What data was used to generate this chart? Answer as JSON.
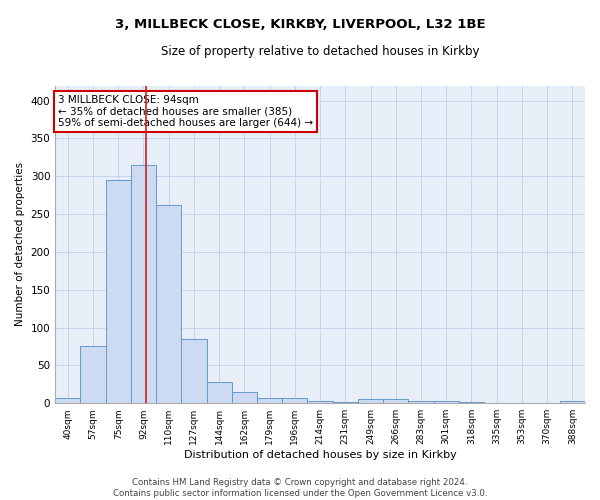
{
  "title1": "3, MILLBECK CLOSE, KIRKBY, LIVERPOOL, L32 1BE",
  "title2": "Size of property relative to detached houses in Kirkby",
  "xlabel": "Distribution of detached houses by size in Kirkby",
  "ylabel": "Number of detached properties",
  "bin_labels": [
    "40sqm",
    "57sqm",
    "75sqm",
    "92sqm",
    "110sqm",
    "127sqm",
    "144sqm",
    "162sqm",
    "179sqm",
    "196sqm",
    "214sqm",
    "231sqm",
    "249sqm",
    "266sqm",
    "283sqm",
    "301sqm",
    "318sqm",
    "335sqm",
    "353sqm",
    "370sqm",
    "388sqm"
  ],
  "bar_heights": [
    7,
    75,
    295,
    315,
    262,
    85,
    28,
    15,
    7,
    7,
    3,
    1,
    5,
    5,
    3,
    3,
    1,
    0,
    0,
    0,
    3
  ],
  "bar_color": "#ccdaf2",
  "bar_edge_color": "#6699cc",
  "vline_x": 3.12,
  "vline_color": "#cc2222",
  "annotation_text": "3 MILLBECK CLOSE: 94sqm\n← 35% of detached houses are smaller (385)\n59% of semi-detached houses are larger (644) →",
  "annotation_box_color": "#ffffff",
  "annotation_box_edge": "#cc0000",
  "grid_color": "#c5d5ec",
  "background_color": "#e8eef8",
  "footnote": "Contains HM Land Registry data © Crown copyright and database right 2024.\nContains public sector information licensed under the Open Government Licence v3.0.",
  "ylim": [
    0,
    420
  ],
  "yticks": [
    0,
    50,
    100,
    150,
    200,
    250,
    300,
    350,
    400
  ],
  "title1_fontsize": 9.5,
  "title2_fontsize": 8.5
}
